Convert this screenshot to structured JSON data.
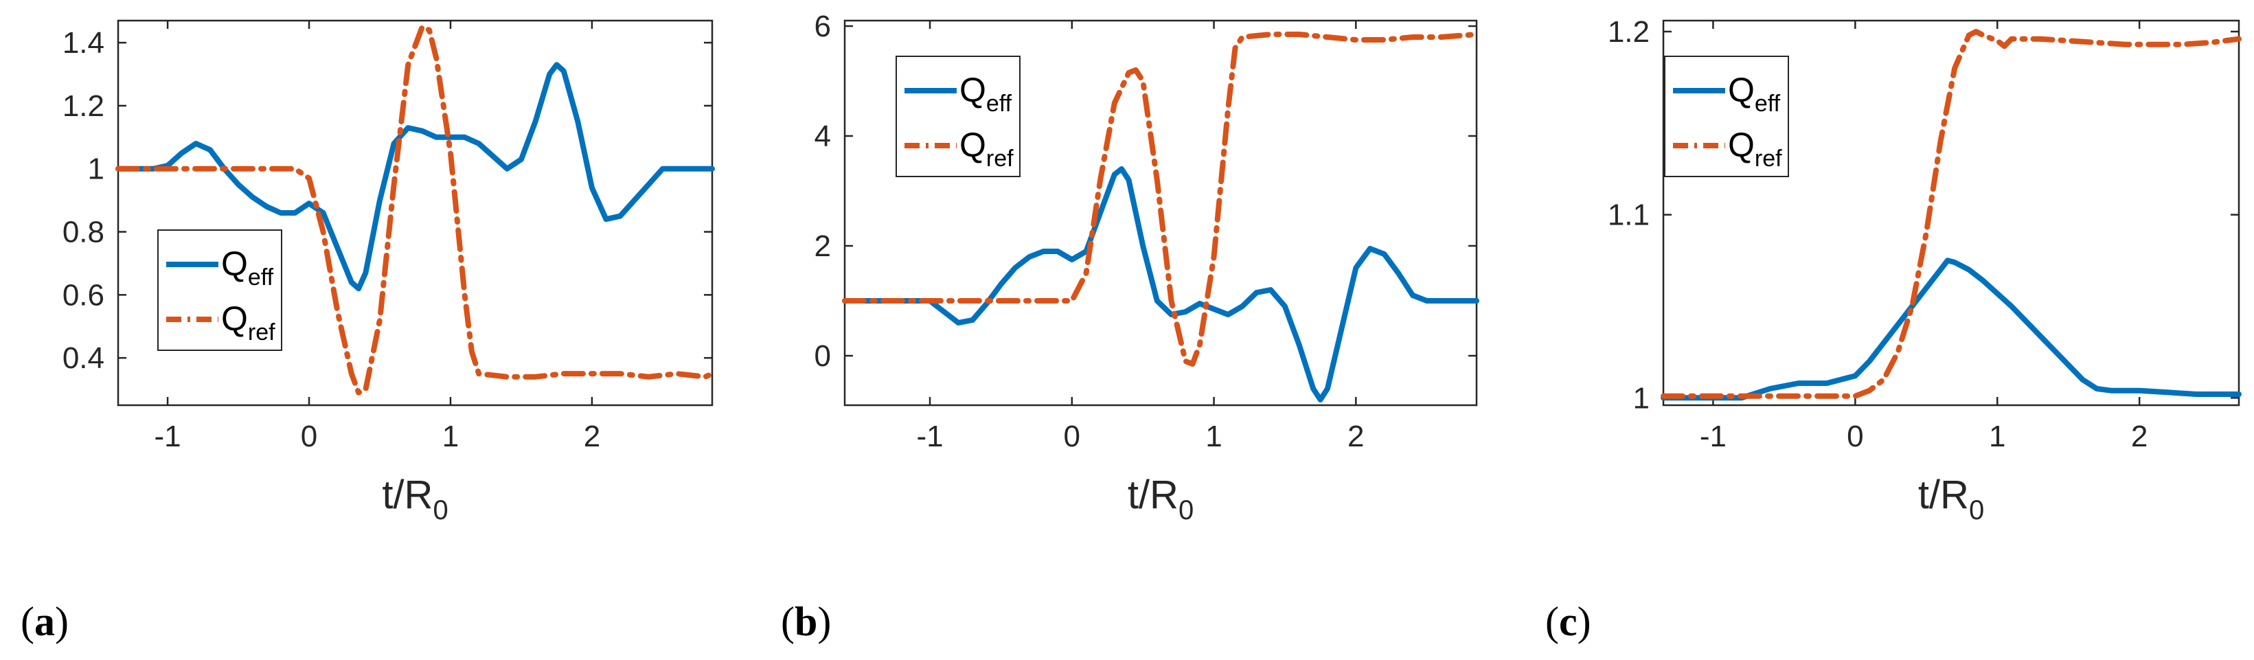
{
  "colors": {
    "eff": "#0072BD",
    "ref": "#D95319",
    "axis": "#262626"
  },
  "chart_data": [
    {
      "type": "line",
      "panel_label": "(a)",
      "xlabel_main": "t/R",
      "xlabel_sub": "0",
      "ylabel": "",
      "xlim": [
        -1.35,
        2.85
      ],
      "ylim": [
        0.25,
        1.47
      ],
      "xticks": [
        -1,
        0,
        1,
        2
      ],
      "xtick_labels": [
        "-1",
        "0",
        "1",
        "2"
      ],
      "yticks": [
        0.4,
        0.6,
        0.8,
        1,
        1.2,
        1.4
      ],
      "ytick_labels": [
        "0.4",
        "0.6",
        "0.8",
        "1",
        "1.2",
        "1.4"
      ],
      "legend": {
        "placement": "lower-left",
        "entries": [
          {
            "main": "Q",
            "sub": "eff"
          },
          {
            "main": "Q",
            "sub": "ref"
          }
        ]
      },
      "series": [
        {
          "name": "Q_eff",
          "style": "solid",
          "x": [
            -1.35,
            -1.1,
            -1.0,
            -0.9,
            -0.8,
            -0.7,
            -0.6,
            -0.5,
            -0.4,
            -0.3,
            -0.2,
            -0.1,
            0.0,
            0.1,
            0.2,
            0.3,
            0.35,
            0.4,
            0.5,
            0.6,
            0.7,
            0.8,
            0.9,
            1.0,
            1.1,
            1.2,
            1.3,
            1.4,
            1.5,
            1.6,
            1.7,
            1.75,
            1.8,
            1.9,
            2.0,
            2.1,
            2.2,
            2.3,
            2.4,
            2.5,
            2.6,
            2.85
          ],
          "y": [
            1.0,
            1.0,
            1.01,
            1.05,
            1.08,
            1.06,
            1.0,
            0.95,
            0.91,
            0.88,
            0.86,
            0.86,
            0.89,
            0.86,
            0.75,
            0.64,
            0.62,
            0.67,
            0.9,
            1.08,
            1.13,
            1.12,
            1.1,
            1.1,
            1.1,
            1.08,
            1.04,
            1.0,
            1.03,
            1.15,
            1.3,
            1.33,
            1.31,
            1.15,
            0.94,
            0.84,
            0.85,
            0.9,
            0.95,
            1.0,
            1.0,
            1.0
          ]
        },
        {
          "name": "Q_ref",
          "style": "dashdot",
          "x": [
            -1.35,
            -0.1,
            0.0,
            0.1,
            0.2,
            0.3,
            0.35,
            0.4,
            0.5,
            0.6,
            0.7,
            0.8,
            0.85,
            0.9,
            1.0,
            1.1,
            1.15,
            1.2,
            1.4,
            1.6,
            1.8,
            2.0,
            2.2,
            2.4,
            2.6,
            2.8,
            2.85
          ],
          "y": [
            1.0,
            1.0,
            0.97,
            0.8,
            0.55,
            0.35,
            0.29,
            0.3,
            0.52,
            0.95,
            1.33,
            1.45,
            1.44,
            1.35,
            1.05,
            0.6,
            0.42,
            0.35,
            0.34,
            0.34,
            0.35,
            0.35,
            0.35,
            0.34,
            0.35,
            0.34,
            0.35
          ]
        }
      ]
    },
    {
      "type": "line",
      "panel_label": "(b)",
      "xlabel_main": "t/R",
      "xlabel_sub": "0",
      "ylabel": "",
      "xlim": [
        -1.6,
        2.85
      ],
      "ylim": [
        -0.9,
        6.1
      ],
      "xticks": [
        -1,
        0,
        1,
        2
      ],
      "xtick_labels": [
        "-1",
        "0",
        "1",
        "2"
      ],
      "yticks": [
        0,
        2,
        4,
        6
      ],
      "ytick_labels": [
        "0",
        "2",
        "4",
        "6"
      ],
      "legend": {
        "placement": "top-left",
        "entries": [
          {
            "main": "Q",
            "sub": "eff"
          },
          {
            "main": "Q",
            "sub": "ref"
          }
        ]
      },
      "series": [
        {
          "name": "Q_eff",
          "style": "solid",
          "x": [
            -1.6,
            -1.0,
            -0.9,
            -0.8,
            -0.7,
            -0.6,
            -0.5,
            -0.4,
            -0.3,
            -0.2,
            -0.1,
            0.0,
            0.1,
            0.2,
            0.3,
            0.35,
            0.4,
            0.5,
            0.6,
            0.7,
            0.8,
            0.9,
            1.0,
            1.1,
            1.2,
            1.3,
            1.4,
            1.5,
            1.6,
            1.7,
            1.75,
            1.8,
            1.9,
            2.0,
            2.1,
            2.2,
            2.3,
            2.4,
            2.5,
            2.6,
            2.85
          ],
          "y": [
            1.0,
            1.0,
            0.8,
            0.6,
            0.65,
            0.95,
            1.3,
            1.6,
            1.8,
            1.9,
            1.9,
            1.75,
            1.9,
            2.6,
            3.3,
            3.4,
            3.2,
            2.0,
            1.0,
            0.75,
            0.8,
            0.95,
            0.85,
            0.75,
            0.9,
            1.15,
            1.2,
            0.9,
            0.2,
            -0.6,
            -0.8,
            -0.6,
            0.5,
            1.6,
            1.95,
            1.85,
            1.5,
            1.1,
            1.0,
            1.0,
            1.0
          ]
        },
        {
          "name": "Q_ref",
          "style": "dashdot",
          "x": [
            -1.6,
            0.0,
            0.1,
            0.2,
            0.3,
            0.4,
            0.45,
            0.5,
            0.6,
            0.7,
            0.8,
            0.85,
            0.9,
            1.0,
            1.1,
            1.15,
            1.2,
            1.4,
            1.6,
            1.8,
            2.0,
            2.2,
            2.4,
            2.6,
            2.85
          ],
          "y": [
            1.0,
            1.0,
            1.5,
            3.2,
            4.6,
            5.15,
            5.2,
            5.0,
            3.2,
            1.0,
            -0.1,
            -0.15,
            0.2,
            1.8,
            4.5,
            5.6,
            5.8,
            5.85,
            5.85,
            5.8,
            5.75,
            5.75,
            5.8,
            5.8,
            5.85
          ]
        }
      ]
    },
    {
      "type": "line",
      "panel_label": "(c)",
      "xlabel_main": "t/R",
      "xlabel_sub": "0",
      "ylabel": "",
      "xlim": [
        -1.35,
        2.7
      ],
      "ylim": [
        0.996,
        1.206
      ],
      "xticks": [
        -1,
        0,
        1,
        2
      ],
      "xtick_labels": [
        "-1",
        "0",
        "1",
        "2"
      ],
      "yticks": [
        1,
        1.1,
        1.2
      ],
      "ytick_labels": [
        "1",
        "1.1",
        "1.2"
      ],
      "legend": {
        "placement": "top-left",
        "entries": [
          {
            "main": "Q",
            "sub": "eff"
          },
          {
            "main": "Q",
            "sub": "ref"
          }
        ]
      },
      "series": [
        {
          "name": "Q_eff",
          "style": "solid",
          "x": [
            -1.35,
            -0.8,
            -0.6,
            -0.4,
            -0.2,
            0.0,
            0.1,
            0.2,
            0.3,
            0.4,
            0.5,
            0.6,
            0.65,
            0.7,
            0.8,
            0.9,
            1.0,
            1.1,
            1.2,
            1.3,
            1.4,
            1.5,
            1.6,
            1.7,
            1.8,
            1.9,
            2.0,
            2.2,
            2.4,
            2.7
          ],
          "y": [
            1.0,
            1.0,
            1.005,
            1.008,
            1.008,
            1.012,
            1.02,
            1.03,
            1.04,
            1.05,
            1.06,
            1.07,
            1.075,
            1.074,
            1.07,
            1.064,
            1.057,
            1.05,
            1.042,
            1.034,
            1.026,
            1.018,
            1.01,
            1.005,
            1.004,
            1.004,
            1.004,
            1.003,
            1.002,
            1.002
          ]
        },
        {
          "name": "Q_ref",
          "style": "dashdot",
          "x": [
            -1.35,
            0.0,
            0.1,
            0.2,
            0.3,
            0.4,
            0.5,
            0.6,
            0.7,
            0.8,
            0.85,
            0.9,
            1.0,
            1.05,
            1.1,
            1.3,
            1.5,
            1.7,
            1.9,
            2.1,
            2.3,
            2.5,
            2.7
          ],
          "y": [
            1.001,
            1.001,
            1.004,
            1.01,
            1.025,
            1.05,
            1.09,
            1.14,
            1.18,
            1.198,
            1.2,
            1.198,
            1.195,
            1.192,
            1.196,
            1.196,
            1.195,
            1.194,
            1.193,
            1.193,
            1.193,
            1.194,
            1.196
          ]
        }
      ]
    }
  ]
}
